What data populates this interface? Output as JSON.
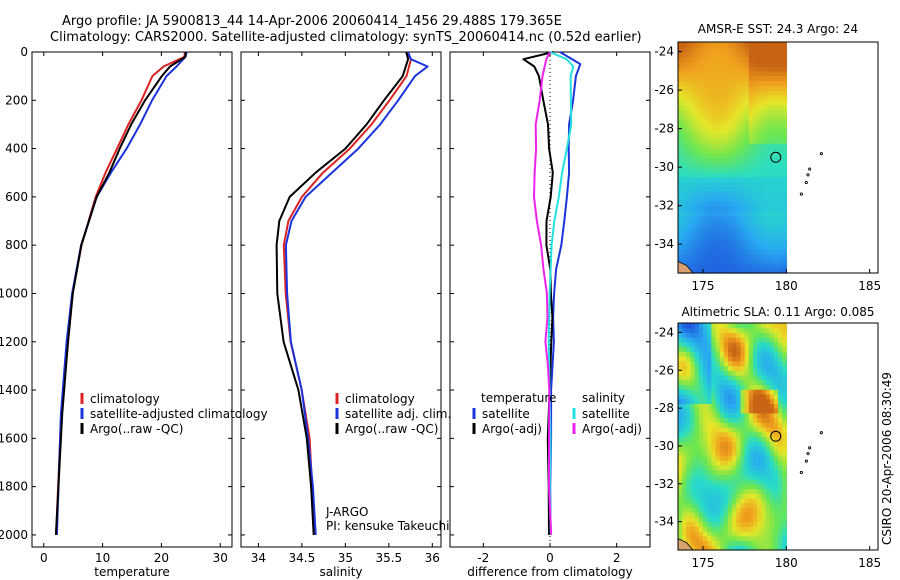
{
  "header": {
    "line1": "Argo profile: JA 5900813_44 14-Apr-2006 20060414_1456 29.488S 179.365E",
    "line2": "Climatology: CARS2000. Satellite-adjusted climatology: synTS_20060414.nc (0.52d earlier)"
  },
  "credit": "CSIRO 20-Apr-2006 08:30:49",
  "colors": {
    "climatology": "#dd2222",
    "satellite": "#1a33dd",
    "argo": "#000000",
    "cyan": "#22e0e0",
    "magenta": "#ee22ee"
  },
  "chart_data": [
    {
      "type": "line",
      "xlabel": "temperature",
      "ylabel": "",
      "xlim": [
        -2,
        32
      ],
      "ylim": [
        2050,
        0
      ],
      "xticks": [
        0,
        10,
        20,
        30
      ],
      "yticks": [
        0,
        200,
        400,
        600,
        800,
        1000,
        1200,
        1400,
        1600,
        1800,
        2000
      ],
      "legend": [
        "climatology",
        "satellite-adjusted climatology",
        "Argo(..raw -QC)"
      ],
      "series": [
        {
          "name": "climatology",
          "color": "#dd2222",
          "depth": [
            0,
            20,
            60,
            100,
            200,
            300,
            400,
            500,
            600,
            800,
            1000,
            1200,
            1500,
            2000
          ],
          "values": [
            24,
            23.8,
            20.5,
            18.5,
            16.5,
            14.5,
            12.5,
            10.5,
            8.8,
            6.5,
            5.0,
            4.0,
            3.0,
            2.2
          ]
        },
        {
          "name": "satellite-adjusted climatology",
          "color": "#1a33dd",
          "depth": [
            0,
            20,
            60,
            100,
            200,
            300,
            400,
            500,
            600,
            800,
            1000,
            1200,
            1500,
            2000
          ],
          "values": [
            24.3,
            24,
            22.5,
            21,
            18.5,
            16.5,
            14.0,
            11.5,
            9.0,
            6.3,
            4.9,
            3.9,
            3.0,
            2.2
          ]
        },
        {
          "name": "Argo(..raw -QC)",
          "color": "#000000",
          "depth": [
            0,
            20,
            60,
            100,
            200,
            300,
            400,
            500,
            600,
            800,
            1000,
            1200,
            1500,
            2000
          ],
          "values": [
            24.1,
            24,
            21.5,
            20,
            17.2,
            15.0,
            13.0,
            11.0,
            9.0,
            6.5,
            5.0,
            4.0,
            3.0,
            2.2
          ]
        }
      ]
    },
    {
      "type": "line",
      "xlabel": "salinity",
      "xlim": [
        33.8,
        36.1
      ],
      "ylim": [
        2050,
        0
      ],
      "xticks": [
        34,
        34.5,
        35,
        35.5,
        36
      ],
      "legend": [
        "climatology",
        "satellite adj. clim.",
        "Argo(..raw -QC)"
      ],
      "annotation": [
        "J-ARGO",
        "PI: kensuke Takeuchi"
      ],
      "series": [
        {
          "name": "climatology",
          "color": "#dd2222",
          "depth": [
            0,
            30,
            100,
            200,
            300,
            400,
            500,
            600,
            700,
            800,
            1000,
            1200,
            1400,
            1600,
            1800,
            2000
          ],
          "values": [
            35.7,
            35.75,
            35.7,
            35.5,
            35.3,
            35.05,
            34.75,
            34.5,
            34.35,
            34.3,
            34.32,
            34.38,
            34.5,
            34.58,
            34.62,
            34.65
          ]
        },
        {
          "name": "satellite adj. clim.",
          "color": "#1a33dd",
          "depth": [
            0,
            30,
            60,
            100,
            200,
            300,
            400,
            500,
            600,
            700,
            800,
            1000,
            1200,
            1400,
            1600,
            1800,
            2000
          ],
          "values": [
            35.72,
            35.75,
            35.95,
            35.8,
            35.6,
            35.4,
            35.15,
            34.85,
            34.55,
            34.38,
            34.32,
            34.33,
            34.38,
            34.5,
            34.58,
            34.62,
            34.65
          ]
        },
        {
          "name": "Argo(..raw -QC)",
          "color": "#000000",
          "depth": [
            0,
            30,
            100,
            200,
            300,
            400,
            500,
            600,
            700,
            800,
            1000,
            1200,
            1400,
            1600,
            1800,
            2000
          ],
          "values": [
            35.7,
            35.72,
            35.65,
            35.45,
            35.25,
            35.0,
            34.65,
            34.35,
            34.25,
            34.2,
            34.22,
            34.3,
            34.45,
            34.55,
            34.6,
            34.64
          ]
        }
      ]
    },
    {
      "type": "line",
      "xlabel": "difference from climatology",
      "xlim": [
        -3,
        3
      ],
      "ylim": [
        2050,
        0
      ],
      "xticks": [
        -2,
        0,
        2
      ],
      "legend_left_title": "temperature",
      "legend_right_title": "salinity",
      "legend": [
        "satellite",
        "Argo(-adj)",
        "satellite",
        "Argo(-adj)"
      ],
      "series": [
        {
          "name": "temperature satellite",
          "color": "#1a33dd",
          "depth": [
            0,
            50,
            100,
            200,
            300,
            400,
            500,
            600,
            700,
            800,
            900,
            1000,
            1100,
            1200,
            1400,
            1600,
            1800,
            2000
          ],
          "values": [
            0.3,
            0.9,
            0.8,
            0.7,
            0.6,
            0.6,
            0.55,
            0.5,
            0.4,
            0.3,
            0.2,
            0.15,
            0.1,
            0.1,
            0.05,
            0.03,
            0.02,
            0
          ]
        },
        {
          "name": "temperature Argo(-adj)",
          "color": "#000000",
          "depth": [
            0,
            30,
            60,
            100,
            200,
            300,
            400,
            500,
            600,
            700,
            800,
            900,
            1000,
            1100,
            1200,
            1400,
            1600,
            1800,
            2000
          ],
          "values": [
            0.1,
            -0.8,
            -0.5,
            -0.3,
            -0.2,
            -0.1,
            0,
            0.1,
            0.0,
            -0.1,
            -0.1,
            0,
            0.05,
            0.1,
            0.0,
            -0.05,
            -0.03,
            -0.02,
            0
          ]
        },
        {
          "name": "salinity satellite",
          "color": "#22e0e0",
          "depth": [
            0,
            30,
            60,
            100,
            200,
            300,
            400,
            500,
            600,
            700,
            800,
            1000,
            1200,
            1400,
            1600,
            1800,
            2000
          ],
          "values": [
            0.0,
            0.5,
            0.7,
            0.6,
            0.6,
            0.6,
            0.5,
            0.4,
            0.25,
            0.1,
            0.05,
            0.02,
            0.0,
            -0.02,
            0.0,
            0.0,
            0.0
          ]
        },
        {
          "name": "salinity Argo(-adj)",
          "color": "#ee22ee",
          "depth": [
            0,
            30,
            100,
            200,
            300,
            400,
            500,
            600,
            700,
            800,
            900,
            1000,
            1100,
            1200,
            1300,
            1400,
            1600,
            1800,
            2000
          ],
          "values": [
            0.0,
            -0.1,
            -0.2,
            -0.3,
            -0.4,
            -0.45,
            -0.5,
            -0.5,
            -0.4,
            -0.25,
            -0.2,
            -0.1,
            -0.1,
            -0.1,
            -0.05,
            -0.05,
            -0.03,
            -0.02,
            0
          ]
        }
      ]
    },
    {
      "type": "heatmap",
      "title": "AMSR-E SST: 24.3 Argo: 24",
      "xlim": [
        173.5,
        185.5
      ],
      "ylim": [
        -35.5,
        -23.5
      ],
      "xticks": [
        175,
        180,
        185
      ],
      "yticks": [
        -24,
        -26,
        -28,
        -30,
        -32,
        -34
      ],
      "data_extent": {
        "lon": [
          173.5,
          180
        ],
        "lat": [
          -35.5,
          -23.5
        ]
      },
      "float_position": {
        "lon": 179.365,
        "lat": -29.488
      }
    },
    {
      "type": "heatmap",
      "title": "Altimetric SLA: 0.11 Argo: 0.085",
      "xlim": [
        173.5,
        185.5
      ],
      "ylim": [
        -35.5,
        -23.5
      ],
      "xticks": [
        175,
        180,
        185
      ],
      "yticks": [
        -24,
        -26,
        -28,
        -30,
        -32,
        -34
      ],
      "data_extent": {
        "lon": [
          173.5,
          180
        ],
        "lat": [
          -35.5,
          -23.5
        ]
      },
      "float_position": {
        "lon": 179.365,
        "lat": -29.488
      }
    }
  ]
}
